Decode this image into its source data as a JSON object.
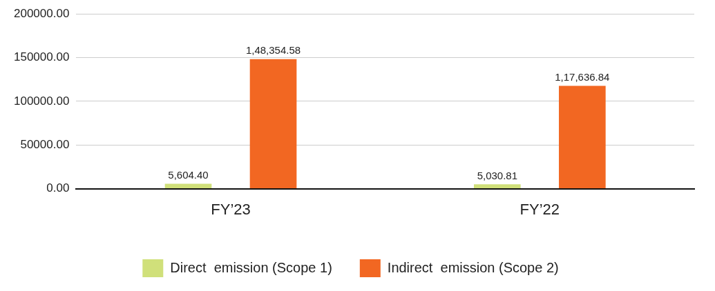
{
  "chart_data": {
    "type": "bar",
    "categories": [
      "FY’23",
      "FY’22"
    ],
    "series": [
      {
        "name": "Direct  emission (Scope 1)",
        "color": "#d0e07a",
        "values": [
          5604.4,
          5030.81
        ],
        "value_labels": [
          "5,604.40",
          "5,030.81"
        ]
      },
      {
        "name": "Indirect  emission (Scope 2)",
        "color": "#f26722",
        "values": [
          148354.58,
          117636.84
        ],
        "value_labels": [
          "1,48,354.58",
          "1,17,636.84"
        ]
      }
    ],
    "ylim": [
      0,
      200000
    ],
    "yticks": [
      {
        "value": 0,
        "label": "0.00"
      },
      {
        "value": 50000,
        "label": "50000.00"
      },
      {
        "value": 100000,
        "label": "100000.00"
      },
      {
        "value": 150000,
        "label": "150000.00"
      },
      {
        "value": 200000,
        "label": "200000.00"
      }
    ],
    "grid": "y",
    "legend": "bottom"
  }
}
